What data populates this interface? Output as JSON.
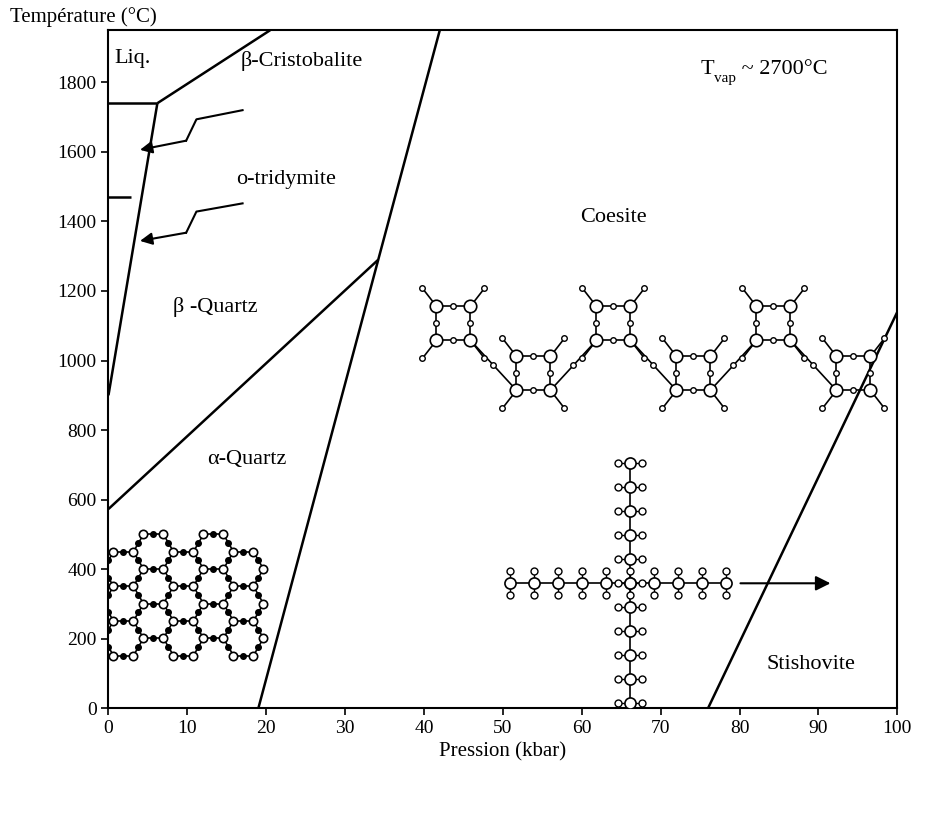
{
  "chart_data": {
    "type": "line",
    "x_label": "Pression (kbar)",
    "y_label": "Température (°C)",
    "xlim": [
      0,
      100
    ],
    "ylim": [
      0,
      1950
    ],
    "xticks": [
      0,
      10,
      20,
      30,
      40,
      50,
      60,
      70,
      80,
      90,
      100
    ],
    "yticks": [
      0,
      200,
      400,
      600,
      800,
      1000,
      1200,
      1400,
      1600,
      1800
    ],
    "grid": false,
    "color": "#000000",
    "series": [
      {
        "x": [
          0,
          34.2
        ],
        "values": [
          573,
          1290
        ]
      },
      {
        "x": [
          19.0,
          34.2,
          42.0
        ],
        "values": [
          0,
          1290,
          1950
        ]
      },
      {
        "x": [
          76.0,
          100
        ],
        "values": [
          0,
          1140
        ]
      },
      {
        "x": [
          0,
          6.2
        ],
        "values": [
          900,
          1740
        ]
      },
      {
        "x": [
          0,
          6.2
        ],
        "values": [
          1740,
          1740
        ]
      },
      {
        "x": [
          6.2,
          20.5
        ],
        "values": [
          1740,
          1950
        ]
      },
      {
        "x": [
          0,
          2.8
        ],
        "values": [
          1470,
          1470
        ]
      }
    ],
    "annotations": [
      {
        "text": "Liq.",
        "x": 3.0,
        "y": 1870
      },
      {
        "text": "β-Cristobalite",
        "x": 24.5,
        "y": 1860,
        "arrow": {
          "x": [
            17,
            4
          ],
          "y": [
            1720,
            1606
          ]
        }
      },
      {
        "text": "o-tridymite",
        "x": 22.5,
        "y": 1520,
        "arrow": {
          "x": [
            17,
            4
          ],
          "y": [
            1452,
            1344
          ]
        }
      },
      {
        "text": "β -Quartz",
        "x": 13.5,
        "y": 1155
      },
      {
        "text": "α-Quartz",
        "x": 17.5,
        "y": 715
      },
      {
        "text": "T",
        "subscript": "vap",
        "after": " ~ 2700°C",
        "x": 75,
        "y": 1838
      },
      {
        "text": "Coesite",
        "x": 64,
        "y": 1410
      },
      {
        "text": "Stishovite",
        "x": 89,
        "y": 125
      }
    ]
  }
}
